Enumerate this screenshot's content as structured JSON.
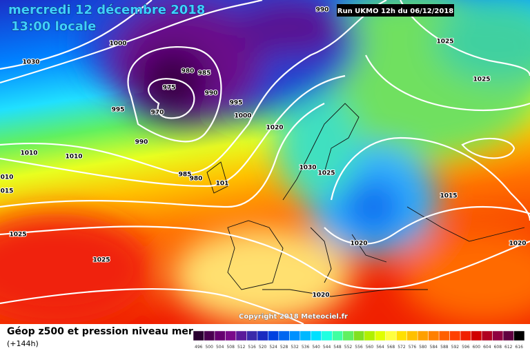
{
  "header": {
    "date": "mercredi 12 décembre 2018",
    "time": "13:00 locale",
    "run": "Run UKMO 12h du 06/12/2018"
  },
  "isobar_labels": [
    "990",
    "1000",
    "1030",
    "980",
    "985",
    "975",
    "990",
    "995",
    "995",
    "970",
    "1000",
    "1020",
    "990",
    "1010",
    "1010",
    "985",
    "980",
    "1030",
    "1025",
    "101",
    "010",
    "015",
    "1025",
    "1025",
    "1015",
    "1025",
    "1025",
    "1020",
    "1020",
    "1020"
  ],
  "copyright": "Copyright 2018 Meteociel.fr",
  "legend": {
    "title": "Géop z500 et pression niveau mer",
    "subtitle": "(+144h)",
    "scale": [
      {
        "label": 496,
        "color": "#2a0030"
      },
      {
        "label": 500,
        "color": "#4a0050"
      },
      {
        "label": 504,
        "color": "#660070"
      },
      {
        "label": 508,
        "color": "#7a0a8a"
      },
      {
        "label": 512,
        "color": "#5a1a9a"
      },
      {
        "label": 516,
        "color": "#3a2aaa"
      },
      {
        "label": 520,
        "color": "#1a2ac0"
      },
      {
        "label": 524,
        "color": "#0040e0"
      },
      {
        "label": 528,
        "color": "#0066f0"
      },
      {
        "label": 532,
        "color": "#0090ff"
      },
      {
        "label": 536,
        "color": "#00b8ff"
      },
      {
        "label": 540,
        "color": "#00e0ff"
      },
      {
        "label": 544,
        "color": "#20ffe0"
      },
      {
        "label": 548,
        "color": "#40ffa0"
      },
      {
        "label": 552,
        "color": "#60f060"
      },
      {
        "label": 556,
        "color": "#80e020"
      },
      {
        "label": 560,
        "color": "#b0f000"
      },
      {
        "label": 564,
        "color": "#e0ff00"
      },
      {
        "label": 568,
        "color": "#ffff40"
      },
      {
        "label": 572,
        "color": "#ffe000"
      },
      {
        "label": 576,
        "color": "#ffc000"
      },
      {
        "label": 580,
        "color": "#ffa000"
      },
      {
        "label": 584,
        "color": "#ff8000"
      },
      {
        "label": 588,
        "color": "#ff6000"
      },
      {
        "label": 592,
        "color": "#ff4000"
      },
      {
        "label": 596,
        "color": "#f02000"
      },
      {
        "label": 600,
        "color": "#d00000"
      },
      {
        "label": 604,
        "color": "#b00020"
      },
      {
        "label": 608,
        "color": "#900040"
      },
      {
        "label": 612,
        "color": "#600040"
      },
      {
        "label": 616,
        "color": "#000000"
      }
    ]
  }
}
